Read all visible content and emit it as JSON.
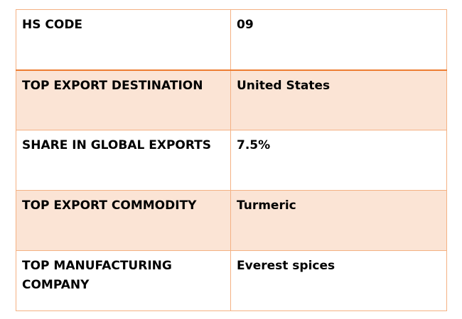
{
  "table": {
    "rows": [
      {
        "label": "HS CODE",
        "value": "09"
      },
      {
        "label": "TOP EXPORT DESTINATION",
        "value": "United States"
      },
      {
        "label": "SHARE IN GLOBAL EXPORTS",
        "value": "7.5%"
      },
      {
        "label": "TOP EXPORT COMMODITY",
        "value": "Turmeric"
      },
      {
        "label": "TOP MANUFACTURING COMPANY",
        "value": "Everest spices"
      }
    ]
  },
  "colors": {
    "border": "#f4b183",
    "header_rule": "#ed7d31",
    "band": "#fbe4d5"
  }
}
